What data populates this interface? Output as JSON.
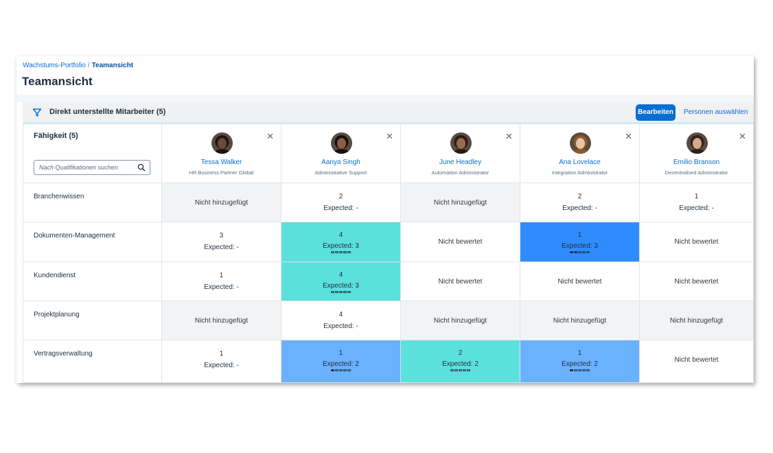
{
  "breadcrumb": {
    "parent": "Wachstums-Portfolio",
    "separator": "/",
    "current": "Teamansicht"
  },
  "page_title": "Teamansicht",
  "toolbar": {
    "title": "Direkt unterstellte Mitarbeiter (5)",
    "edit_label": "Bearbeiten",
    "select_label": "Personen auswählen",
    "filter_icon": "filter-icon"
  },
  "skills_header": {
    "title": "Fähigkeit (5)",
    "search_placeholder": "Nach Qualifikationen suchen"
  },
  "colors": {
    "grey": "#f2f3f4",
    "white": "#ffffff",
    "teal": "#5ce0dc",
    "blue": "#6ab1ff",
    "darkblue": "#2f8cff"
  },
  "people": [
    {
      "name": "Tessa Walker",
      "role": "HR Business Partner Global",
      "skin": "#6b4a36",
      "hair": "#1c1410"
    },
    {
      "name": "Aanya Singh",
      "role": "Administrative Support",
      "skin": "#8a5f45",
      "hair": "#161010"
    },
    {
      "name": "June Headley",
      "role": "Automation Administrator",
      "skin": "#9b6b4e",
      "hair": "#2a1c14"
    },
    {
      "name": "Ana Lovelace",
      "role": "Integration Administrator",
      "skin": "#e9c3a4",
      "hair": "#8a5a2e"
    },
    {
      "name": "Emilio Branson",
      "role": "Decentralised Administrator",
      "skin": "#d8a88a",
      "hair": "#2c2420"
    }
  ],
  "skills": [
    {
      "name": "Branchenwissen",
      "cells": [
        {
          "type": "text",
          "text": "Nicht hinzugefügt",
          "color": "grey"
        },
        {
          "type": "value",
          "value": "2",
          "expected": "Expected: -",
          "color": "white"
        },
        {
          "type": "text",
          "text": "Nicht hinzugefügt",
          "color": "grey"
        },
        {
          "type": "value",
          "value": "2",
          "expected": "Expected: -",
          "color": "white"
        },
        {
          "type": "value",
          "value": "1",
          "expected": "Expected: -",
          "color": "white"
        }
      ]
    },
    {
      "name": "Dokumenten-Management",
      "cells": [
        {
          "type": "value",
          "value": "3",
          "expected": "Expected: -",
          "color": "white"
        },
        {
          "type": "value",
          "value": "4",
          "expected": "Expected: 3",
          "color": "teal",
          "dots": 0
        },
        {
          "type": "text",
          "text": "Nicht bewertet",
          "color": "white"
        },
        {
          "type": "value",
          "value": "1",
          "expected": "Expected: 3",
          "color": "darkblue",
          "dots": 2
        },
        {
          "type": "text",
          "text": "Nicht bewertet",
          "color": "white"
        }
      ]
    },
    {
      "name": "Kundendienst",
      "cells": [
        {
          "type": "value",
          "value": "1",
          "expected": "Expected: -",
          "color": "white"
        },
        {
          "type": "value",
          "value": "4",
          "expected": "Expected: 3",
          "color": "teal",
          "dots": 0
        },
        {
          "type": "text",
          "text": "Nicht bewertet",
          "color": "white"
        },
        {
          "type": "text",
          "text": "Nicht bewertet",
          "color": "white"
        },
        {
          "type": "text",
          "text": "Nicht bewertet",
          "color": "white"
        }
      ]
    },
    {
      "name": "Projektplanung",
      "cells": [
        {
          "type": "text",
          "text": "Nicht hinzugefügt",
          "color": "grey"
        },
        {
          "type": "value",
          "value": "4",
          "expected": "Expected: -",
          "color": "white"
        },
        {
          "type": "text",
          "text": "Nicht hinzugefügt",
          "color": "grey"
        },
        {
          "type": "text",
          "text": "Nicht hinzugefügt",
          "color": "grey"
        },
        {
          "type": "text",
          "text": "Nicht hinzugefügt",
          "color": "grey"
        }
      ]
    },
    {
      "name": "Vertragsverwaltung",
      "cells": [
        {
          "type": "value",
          "value": "1",
          "expected": "Expected: -",
          "color": "white"
        },
        {
          "type": "value",
          "value": "1",
          "expected": "Expected: 2",
          "color": "blue",
          "dots": 1
        },
        {
          "type": "value",
          "value": "2",
          "expected": "Expected: 2",
          "color": "teal",
          "dots": 0
        },
        {
          "type": "value",
          "value": "1",
          "expected": "Expected: 2",
          "color": "blue",
          "dots": 1
        },
        {
          "type": "text",
          "text": "Nicht bewertet",
          "color": "white"
        }
      ]
    }
  ]
}
